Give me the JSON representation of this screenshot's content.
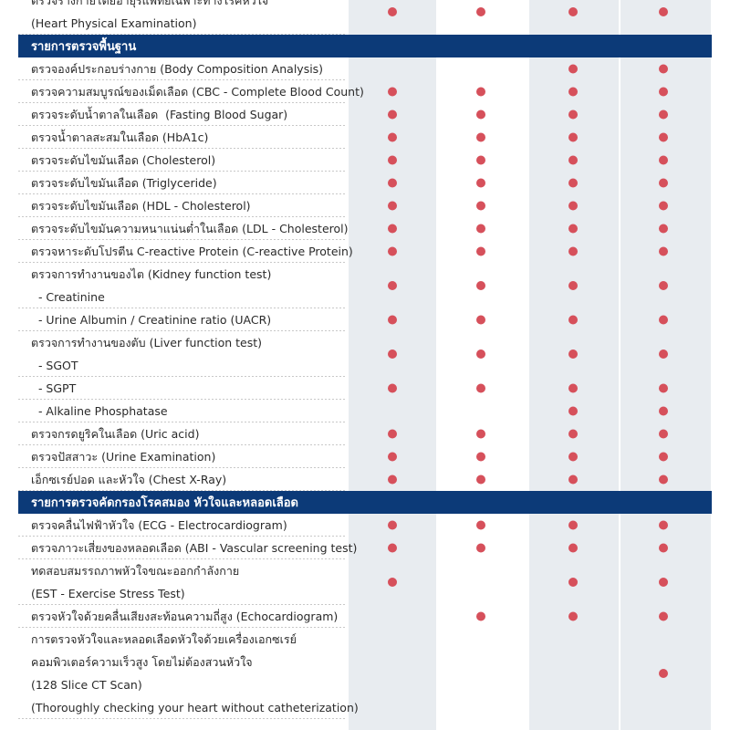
{
  "table": {
    "rows": [
      {
        "lines": [
          "ตรวจร่างกายโดยอายุรแพทย์เฉพาะทางโรคหัวใจ",
          "(Heart Physical Examination)"
        ],
        "checks": [
          true,
          true,
          true,
          true
        ]
      },
      {
        "section": "รายการตรวจพื้นฐาน"
      },
      {
        "lines": [
          "ตรวจองค์ประกอบร่างกาย (Body Composition Analysis)"
        ],
        "checks": [
          false,
          false,
          true,
          true
        ]
      },
      {
        "lines": [
          "ตรวจความสมบูรณ์ของเม็ดเลือด (CBC - Complete Blood Count)"
        ],
        "checks": [
          true,
          true,
          true,
          true
        ]
      },
      {
        "lines": [
          "ตรวจระดับน้ำตาลในเลือด  (Fasting Blood Sugar)"
        ],
        "checks": [
          true,
          true,
          true,
          true
        ]
      },
      {
        "lines": [
          "ตรวจน้ำตาลสะสมในเลือด (HbA1c)"
        ],
        "checks": [
          true,
          true,
          true,
          true
        ]
      },
      {
        "lines": [
          "ตรวจระดับไขมันเลือด (Cholesterol)"
        ],
        "checks": [
          true,
          true,
          true,
          true
        ]
      },
      {
        "lines": [
          "ตรวจระดับไขมันเลือด (Triglyceride)"
        ],
        "checks": [
          true,
          true,
          true,
          true
        ]
      },
      {
        "lines": [
          "ตรวจระดับไขมันเลือด (HDL - Cholesterol)"
        ],
        "checks": [
          true,
          true,
          true,
          true
        ]
      },
      {
        "lines": [
          "ตรวจระดับไขมันความหนาแน่นต่ำในเลือด (LDL - Cholesterol)"
        ],
        "checks": [
          true,
          true,
          true,
          true
        ]
      },
      {
        "lines": [
          "ตรวจหาระดับโปรตีน C-reactive Protein (C-reactive Protein)"
        ],
        "checks": [
          true,
          true,
          true,
          true
        ]
      },
      {
        "lines": [
          "ตรวจการทำงานของไต (Kidney function test)",
          "  - Creatinine"
        ],
        "checks": [
          true,
          true,
          true,
          true
        ]
      },
      {
        "lines": [
          "  - Urine Albumin / Creatinine ratio (UACR)"
        ],
        "checks": [
          true,
          true,
          true,
          true
        ]
      },
      {
        "lines": [
          "ตรวจการทำงานของตับ (Liver function test)",
          "  - SGOT"
        ],
        "checks": [
          true,
          true,
          true,
          true
        ]
      },
      {
        "lines": [
          "  - SGPT"
        ],
        "checks": [
          true,
          true,
          true,
          true
        ]
      },
      {
        "lines": [
          "  - Alkaline Phosphatase"
        ],
        "checks": [
          false,
          false,
          true,
          true
        ]
      },
      {
        "lines": [
          "ตรวจกรดยูริคในเลือด (Uric acid)"
        ],
        "checks": [
          true,
          true,
          true,
          true
        ]
      },
      {
        "lines": [
          "ตรวจปัสสาวะ (Urine Examination)"
        ],
        "checks": [
          true,
          true,
          true,
          true
        ]
      },
      {
        "lines": [
          "เอ็กซเรย์ปอด และหัวใจ (Chest X-Ray)"
        ],
        "checks": [
          true,
          true,
          true,
          true
        ]
      },
      {
        "section": "รายการตรวจคัดกรองโรคสมอง หัวใจและหลอดเลือด"
      },
      {
        "lines": [
          "ตรวจคลื่นไฟฟ้าหัวใจ (ECG - Electrocardiogram)"
        ],
        "checks": [
          true,
          true,
          true,
          true
        ]
      },
      {
        "lines": [
          "ตรวจภาวะเสี่ยงของหลอดเลือด (ABI - Vascular screening test)"
        ],
        "checks": [
          true,
          true,
          true,
          true
        ]
      },
      {
        "lines": [
          "ทดสอบสมรรถภาพหัวใจขณะออกกำลังกาย",
          "(EST - Exercise Stress Test)"
        ],
        "checks": [
          true,
          false,
          true,
          true
        ]
      },
      {
        "lines": [
          "ตรวจหัวใจด้วยคลื่นเสียงสะท้อนความถี่สูง (Echocardiogram)"
        ],
        "checks": [
          false,
          true,
          true,
          true
        ]
      },
      {
        "lines": [
          "การตรวจหัวใจและหลอดเลือดหัวใจด้วยเครื่องเอกซเรย์",
          "คอมพิวเตอร์ความเร็วสูง โดยไม่ต้องสวนหัวใจ",
          "(128 Slice CT Scan)",
          "(Thoroughly checking your heart without catheterization)"
        ],
        "checks": [
          false,
          false,
          false,
          true
        ]
      }
    ]
  }
}
